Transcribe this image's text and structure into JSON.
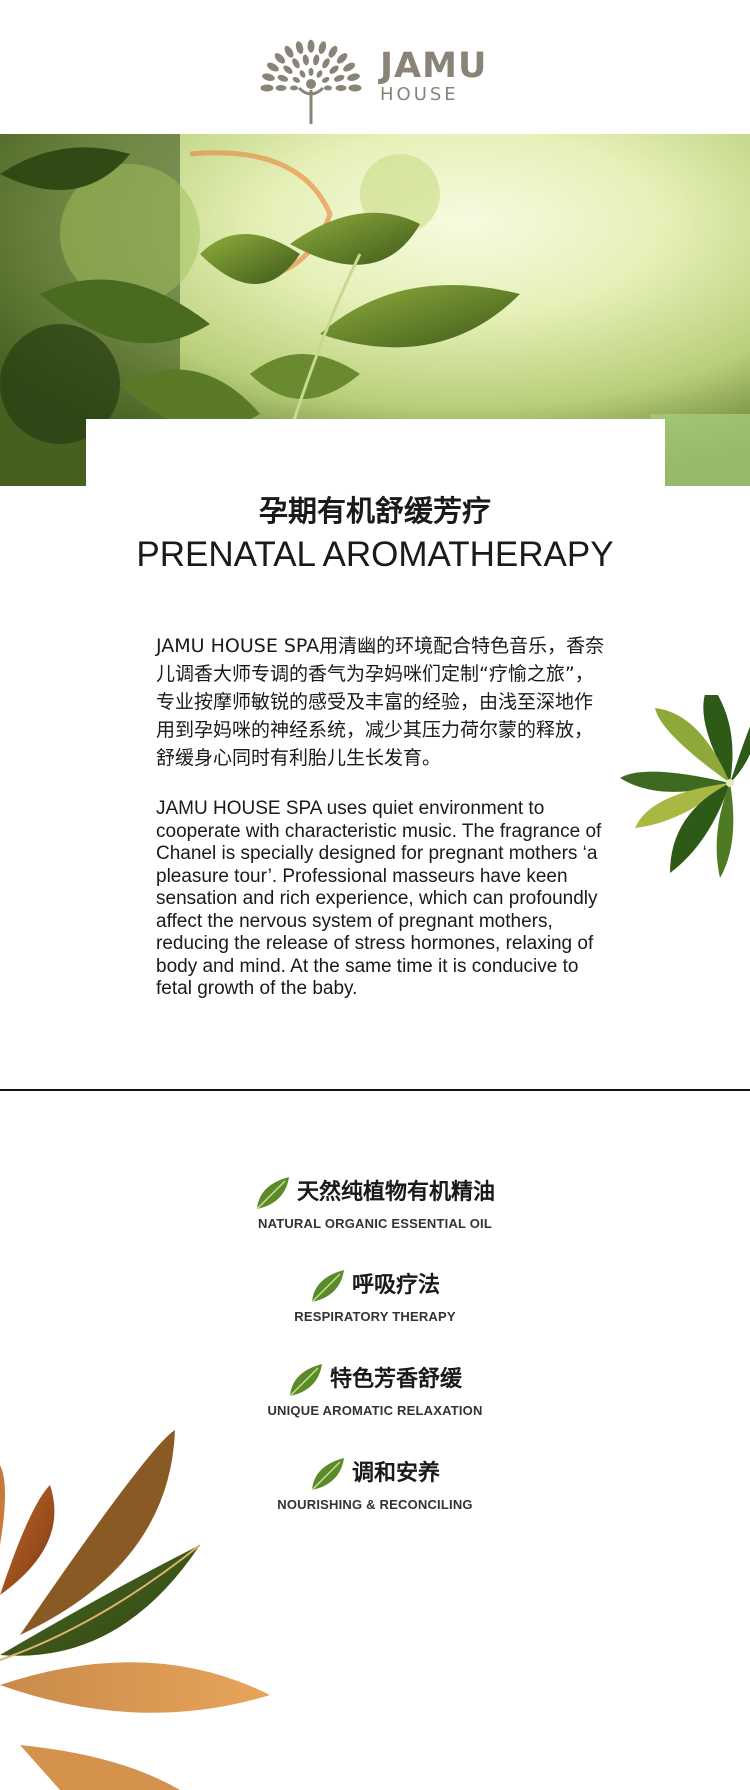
{
  "logo": {
    "main": "JAMU",
    "sub": "HOUSE"
  },
  "heading": {
    "cn": "孕期有机舒缓芳疗",
    "en": "PRENATAL AROMATHERAPY"
  },
  "intro": {
    "cn": "JAMU HOUSE SPA用清幽的环境配合特色音乐，香奈儿调香大师专调的香气为孕妈咪们定制“疗愉之旅”，专业按摩师敏锐的感受及丰富的经验，由浅至深地作用到孕妈咪的神经系统，减少其压力荷尔蒙的释放，舒缓身心同时有利胎儿生长发育。",
    "en": "JAMU HOUSE SPA uses quiet environment to cooperate with characteristic music. The fragrance of Chanel is specially designed for pregnant mothers ‘a pleasure tour’. Professional masseurs have keen sensation and rich experience, which can profoundly affect the nervous system of pregnant mothers, reducing the release of stress hormones, relaxing of body and mind. At the same time it is conducive to fetal growth of the baby."
  },
  "features": [
    {
      "cn": "天然纯植物有机精油",
      "en": "NATURAL ORGANIC ESSENTIAL OIL"
    },
    {
      "cn": "呼吸疗法",
      "en": "RESPIRATORY THERAPY"
    },
    {
      "cn": "特色芳香舒缓",
      "en": "UNIQUE AROMATIC RELAXATION"
    },
    {
      "cn": "调和安养",
      "en": "NOURISHING & RECONCILING"
    }
  ],
  "colors": {
    "logo": "#8a8478",
    "leaf_green": "#5a8a2a",
    "hero_light": "#eaf3c4"
  }
}
